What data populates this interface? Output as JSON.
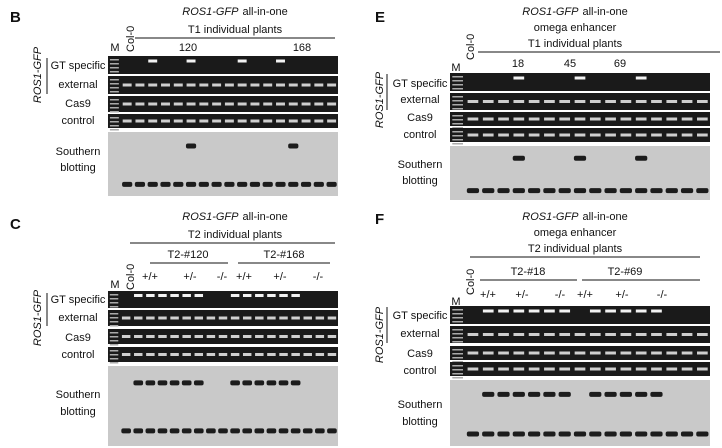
{
  "panels": [
    {
      "label": "B",
      "title": {
        "gene": "ROS1-GFP",
        "text": "all-in-one"
      },
      "subtitles": [
        "T1 individual plants"
      ],
      "marker": "M",
      "control": "Col-0",
      "lane_labels": [
        "120",
        "168"
      ],
      "side_label": "ROS1-GFP",
      "rows": [
        "GT specific",
        "external",
        "Cas9",
        "control",
        "Southern",
        "blotting"
      ]
    },
    {
      "label": "C",
      "title": {
        "gene": "ROS1-GFP",
        "text": "all-in-one"
      },
      "subtitles": [
        "T2 individual plants"
      ],
      "marker": "M",
      "control": "Col-0",
      "groups": [
        {
          "name": "T2-#120",
          "genotypes": [
            "+/+",
            "+/-",
            "-/-"
          ]
        },
        {
          "name": "T2-#168",
          "genotypes": [
            "+/+",
            "+/-",
            "-/-"
          ]
        }
      ],
      "side_label": "ROS1-GFP",
      "rows": [
        "GT specific",
        "external",
        "Cas9",
        "control",
        "Southern",
        "blotting"
      ]
    },
    {
      "label": "E",
      "title": {
        "gene": "ROS1-GFP",
        "text": "all-in-one"
      },
      "subtitles": [
        "omega enhancer",
        "T1 individual plants"
      ],
      "marker": "M",
      "control": "Col-0",
      "lane_labels": [
        "18",
        "45",
        "69"
      ],
      "side_label": "ROS1-GFP",
      "rows": [
        "GT specific",
        "external",
        "Cas9",
        "control",
        "Southern",
        "blotting"
      ]
    },
    {
      "label": "F",
      "title": {
        "gene": "ROS1-GFP",
        "text": "all-in-one"
      },
      "subtitles": [
        "omega enhancer",
        "T2 individual plants"
      ],
      "marker": "M",
      "control": "Col-0",
      "groups": [
        {
          "name": "T2-#18",
          "genotypes": [
            "+/+",
            "+/-",
            "-/-"
          ]
        },
        {
          "name": "T2-#69",
          "genotypes": [
            "+/+",
            "+/-",
            "-/-"
          ]
        }
      ],
      "side_label": "ROS1-GFP",
      "rows": [
        "GT specific",
        "external",
        "Cas9",
        "control",
        "Southern",
        "blotting"
      ]
    }
  ]
}
